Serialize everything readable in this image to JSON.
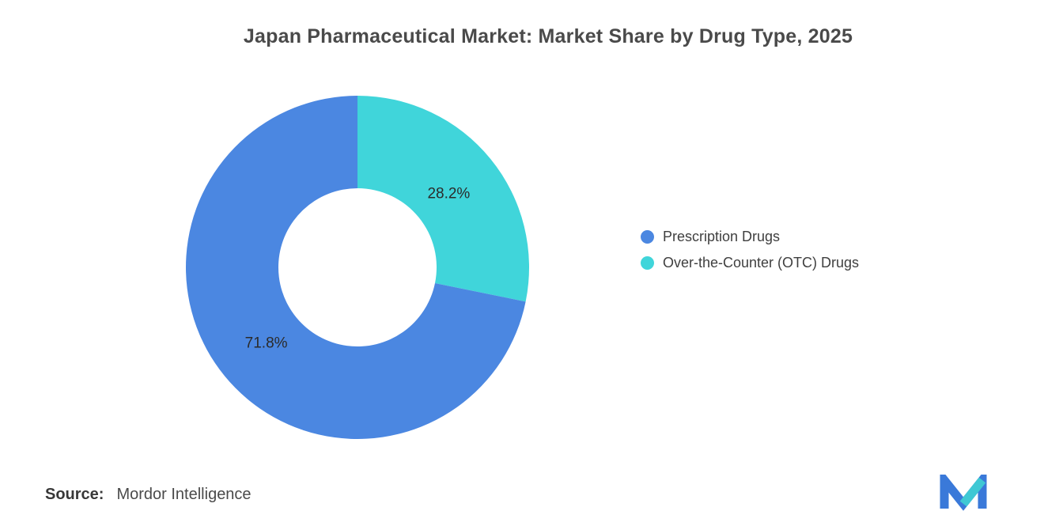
{
  "title": "Japan Pharmaceutical Market: Market Share by Drug Type, 2025",
  "source": {
    "prefix": "Source:",
    "text": "Mordor Intelligence"
  },
  "logo": {
    "name": "Mordor Intelligence logo",
    "blue": "#3a79d9",
    "teal": "#3fc8d4"
  },
  "chart_data": {
    "type": "pie",
    "subtype": "donut",
    "title": "Japan Pharmaceutical Market: Market Share by Drug Type, 2025",
    "start_angle_deg": -90,
    "direction": "clockwise",
    "slices": [
      {
        "label": "Prescription Drugs",
        "value": 71.8,
        "color": "#4b87e1"
      },
      {
        "label": "Over-the-Counter (OTC) Drugs",
        "value": 28.2,
        "color": "#40d5da"
      }
    ],
    "draw_order": [
      1,
      0
    ],
    "value_format": "percent",
    "labels_inside": true,
    "legend_position": "right"
  }
}
